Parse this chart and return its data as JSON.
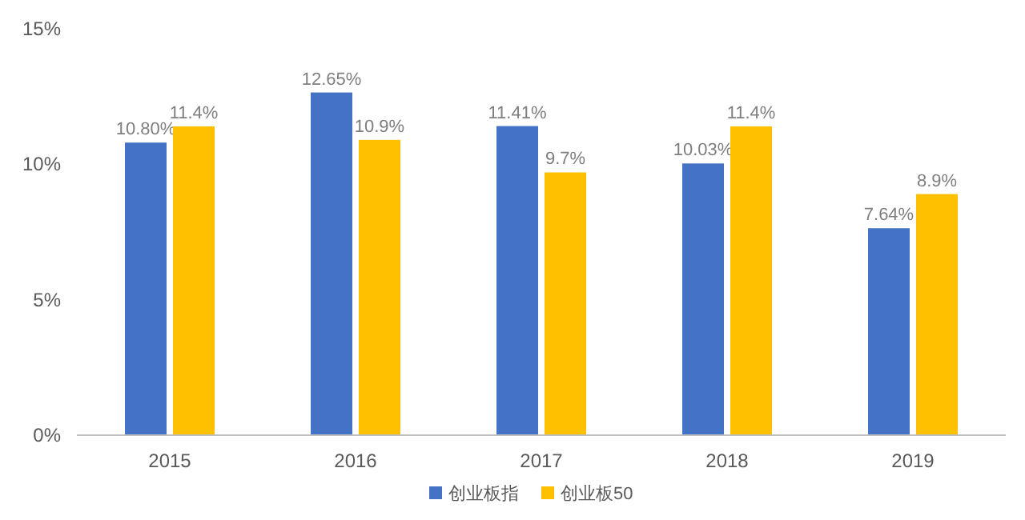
{
  "chart_data": {
    "type": "bar",
    "categories": [
      "2015",
      "2016",
      "2017",
      "2018",
      "2019"
    ],
    "series": [
      {
        "name": "创业板指",
        "color": "#4472c4",
        "values": [
          10.8,
          12.65,
          11.41,
          10.03,
          7.64
        ],
        "value_labels": [
          "10.80%",
          "12.65%",
          "11.41%",
          "10.03%",
          "7.64%"
        ]
      },
      {
        "name": "创业板50",
        "color": "#ffc000",
        "values": [
          11.4,
          10.9,
          9.7,
          11.4,
          8.9
        ],
        "value_labels": [
          "11.4%",
          "10.9%",
          "9.7%",
          "11.4%",
          "8.9%"
        ]
      }
    ],
    "ylim": [
      0,
      15
    ],
    "yticks": [
      {
        "value": 0,
        "label": "0%"
      },
      {
        "value": 5,
        "label": "5%"
      },
      {
        "value": 10,
        "label": "10%"
      },
      {
        "value": 15,
        "label": "15%"
      }
    ],
    "grid": false,
    "legend": "bottom"
  }
}
